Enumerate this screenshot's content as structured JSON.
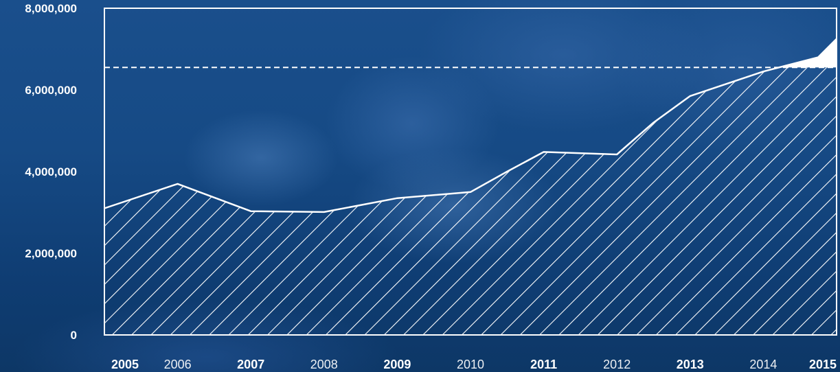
{
  "chart_data": {
    "type": "area",
    "x": [
      2005,
      2006,
      2007,
      2008,
      2009,
      2010,
      2011,
      2012,
      2013,
      2014,
      2015
    ],
    "x_tick_labels": [
      "2005",
      "2006",
      "2007",
      "2008",
      "2009",
      "2010",
      "2011",
      "2012",
      "2013",
      "2014",
      "2015"
    ],
    "x_tick_bold": [
      true,
      false,
      true,
      false,
      true,
      false,
      true,
      false,
      true,
      false,
      true
    ],
    "series": [
      {
        "x": [
          2005.0,
          2006.0,
          2007.0,
          2008.0,
          2009.0,
          2010.0,
          2010.5,
          2011.0,
          2012.0,
          2012.5,
          2013.0,
          2014.0,
          2014.75,
          2015.0
        ],
        "values": [
          3100000,
          3700000,
          3030000,
          3010000,
          3350000,
          3500000,
          4000000,
          4480000,
          4420000,
          5200000,
          5850000,
          6450000,
          6800000,
          7250000
        ]
      }
    ],
    "reference_line": 6550000,
    "y_ticks": [
      0,
      2000000,
      4000000,
      6000000,
      8000000
    ],
    "y_tick_labels": [
      "0",
      "2,000,000",
      "4,000,000",
      "6,000,000",
      "8,000,000"
    ],
    "ylim": [
      0,
      8000000
    ],
    "xlim": [
      2005,
      2015
    ],
    "title": "",
    "xlabel": "",
    "ylabel": "",
    "grid": false,
    "colors": {
      "background": "#1a4f8c",
      "line": "#ffffff",
      "hatch": "#ffffff",
      "text": "#ffffff"
    }
  }
}
